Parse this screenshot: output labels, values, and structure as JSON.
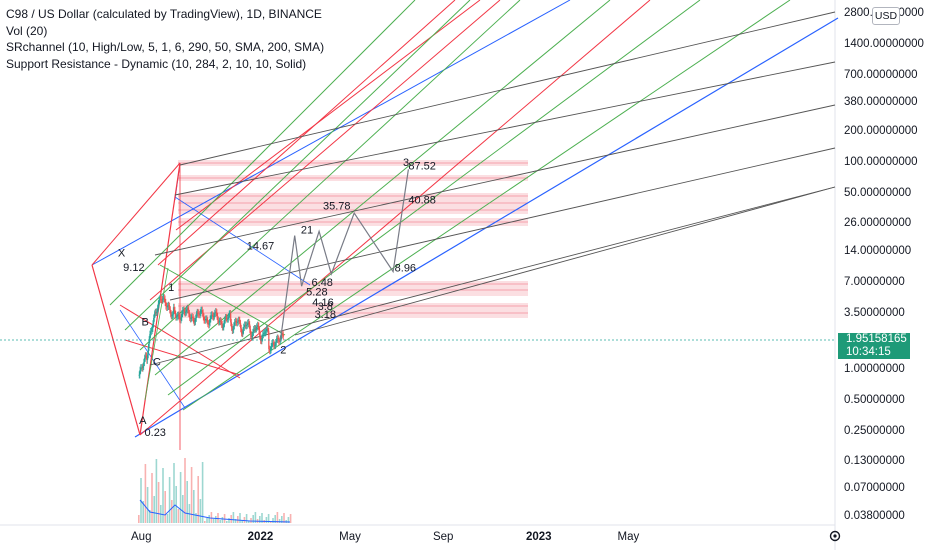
{
  "legend": {
    "title": "C98 / US Dollar (calculated by TradingView), 1D, BINANCE",
    "indicator_1": "Vol (20)",
    "indicator_2": "SRchannel (10, High/Low, 5, 1, 6, 290, 50, SMA, 200, SMA)",
    "indicator_3": "Support Resistance - Dynamic (10, 284, 2, 10, 10, Solid)"
  },
  "currency": "USD",
  "current_price": {
    "value": "1.95158165",
    "countdown": "10:34:15",
    "color": "#1e9a78"
  },
  "chart_data": {
    "type": "line",
    "symbol": "C98USD",
    "y_scale": "log",
    "ylim": [
      0.03,
      2800
    ],
    "price_ticks": [
      "2800.00000000",
      "1400.00000000",
      "700.00000000",
      "380.00000000",
      "200.00000000",
      "100.00000000",
      "50.00000000",
      "26.00000000",
      "14.00000000",
      "7.00000000",
      "3.50000000",
      "1.00000000",
      "0.50000000",
      "0.25000000",
      "0.13000000",
      "0.07000000",
      "0.03800000"
    ],
    "time_ticks": [
      "Aug",
      "2022",
      "May",
      "Sep",
      "2023",
      "May"
    ],
    "wave_labels": [
      {
        "text": "X",
        "x": "2021-06-29",
        "y": 12.5
      },
      {
        "text": "9.12",
        "x": "2021-07-06",
        "y": 9.12
      },
      {
        "text": "A",
        "x": "2021-07-27",
        "y": 0.3
      },
      {
        "text": "0.23",
        "x": "2021-08-03",
        "y": 0.23
      },
      {
        "text": "B",
        "x": "2021-07-30",
        "y": 2.7
      },
      {
        "text": "C",
        "x": "2021-08-14",
        "y": 1.1
      },
      {
        "text": "1",
        "x": "2021-09-03",
        "y": 5.8
      },
      {
        "text": "2",
        "x": "2022-01-28",
        "y": 1.45
      },
      {
        "text": "3",
        "x": "2022-07-08",
        "y": 94
      },
      {
        "text": "87.52",
        "x": "2022-07-15",
        "y": 87.52
      },
      {
        "text": "35.78",
        "x": "2022-03-25",
        "y": 35.78
      },
      {
        "text": "40.88",
        "x": "2022-07-15",
        "y": 40.88
      },
      {
        "text": "21",
        "x": "2022-02-24",
        "y": 21
      },
      {
        "text": "14.67",
        "x": "2021-12-15",
        "y": 14.67
      },
      {
        "text": "8.96",
        "x": "2022-06-27",
        "y": 8.96
      },
      {
        "text": "6.48",
        "x": "2022-03-10",
        "y": 6.48
      },
      {
        "text": "5.28",
        "x": "2022-03-03",
        "y": 5.28
      },
      {
        "text": "4.16",
        "x": "2022-03-11",
        "y": 4.16
      },
      {
        "text": "3.8",
        "x": "2022-03-18",
        "y": 3.8
      },
      {
        "text": "3.18",
        "x": "2022-03-14",
        "y": 3.18
      }
    ],
    "projection_path": [
      {
        "x": "2022-01-28",
        "y": 1.9
      },
      {
        "x": "2022-02-16",
        "y": 20
      },
      {
        "x": "2022-02-25",
        "y": 6.48
      },
      {
        "x": "2022-03-20",
        "y": 22
      },
      {
        "x": "2022-04-05",
        "y": 8.5
      },
      {
        "x": "2022-05-05",
        "y": 33
      },
      {
        "x": "2022-06-25",
        "y": 8.96
      },
      {
        "x": "2022-07-15",
        "y": 87.52
      }
    ],
    "colors": {
      "up": "#26a69a",
      "down": "#ef5350",
      "pitchfork_blue": "#2962ff",
      "fib_red": "#f23645",
      "fib_green": "#4caf50",
      "channel_gray": "#555555",
      "sr_zone": "#f7c5cb"
    }
  }
}
